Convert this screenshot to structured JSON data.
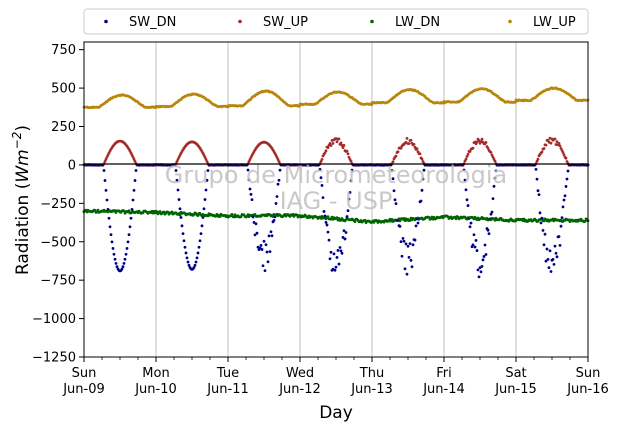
{
  "chart_data": {
    "type": "scatter",
    "ylabel": "Radiation (Wm⁻²)",
    "xlabel": "Day",
    "watermark": [
      "Grupo de Micrometeorologia",
      "IAG - USP"
    ],
    "ylim": [
      -1250,
      800
    ],
    "yticks": [
      750,
      500,
      250,
      0,
      -250,
      -500,
      -750,
      -1000,
      -1250
    ],
    "ytick_labels": [
      "750",
      "500",
      "250",
      "0",
      "−250",
      "−500",
      "−750",
      "−1000",
      "−1250"
    ],
    "xlim_days": [
      0,
      7
    ],
    "x_dates": [
      {
        "day": "Sun",
        "date": "Jun-09"
      },
      {
        "day": "Mon",
        "date": "Jun-10"
      },
      {
        "day": "Tue",
        "date": "Jun-11"
      },
      {
        "day": "Wed",
        "date": "Jun-12"
      },
      {
        "day": "Thu",
        "date": "Jun-13"
      },
      {
        "day": "Fri",
        "date": "Jun-14"
      },
      {
        "day": "Sat",
        "date": "Jun-15"
      },
      {
        "day": "Sun",
        "date": "Jun-16"
      }
    ],
    "grid": "vertical",
    "legend_position": "top",
    "series": [
      {
        "name": "SW_DN",
        "color": "#00008b",
        "daily_min": [
          -690,
          -680,
          -660,
          -720,
          -690,
          -700,
          -720
        ],
        "noon_fraction": 0.5
      },
      {
        "name": "SW_UP",
        "color": "#a52a2a",
        "daily_peak": [
          155,
          150,
          148,
          160,
          155,
          158,
          162
        ]
      },
      {
        "name": "LW_DN",
        "color": "#006400",
        "baseline": [
          -300,
          -310,
          -330,
          -330,
          -370,
          -340,
          -360
        ]
      },
      {
        "name": "LW_UP",
        "color": "#b8860b",
        "night_level": [
          375,
          380,
          385,
          395,
          405,
          410,
          420
        ],
        "day_peak": [
          455,
          460,
          480,
          475,
          490,
          495,
          500
        ]
      }
    ]
  }
}
